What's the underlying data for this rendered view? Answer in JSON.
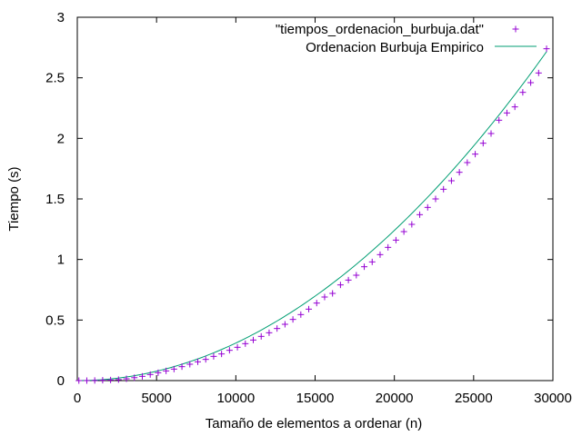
{
  "chart_data": {
    "type": "scatter",
    "title": "",
    "xlabel": "Tamaño de elementos a ordenar (n)",
    "ylabel": "Tiempo (s)",
    "xlim": [
      0,
      30000
    ],
    "ylim": [
      0,
      3
    ],
    "x_ticks": [
      0,
      5000,
      10000,
      15000,
      20000,
      25000,
      30000
    ],
    "x_tick_labels": [
      "0",
      "5000",
      "10000",
      "15000",
      "20000",
      "25000",
      "30000"
    ],
    "y_ticks": [
      0,
      0.5,
      1,
      1.5,
      2,
      2.5,
      3
    ],
    "y_tick_labels": [
      "0",
      "0.5",
      "1",
      "1.5",
      "2",
      "2.5",
      "3"
    ],
    "grid": false,
    "legend_position": "top-right",
    "series": [
      {
        "name": "\"tiempos_ordenacion_burbuja.dat\"",
        "style": "points",
        "color": "#9400d3",
        "x": [
          100,
          600,
          1100,
          1600,
          2100,
          2600,
          3100,
          3600,
          4100,
          4600,
          5100,
          5600,
          6100,
          6600,
          7100,
          7600,
          8100,
          8600,
          9100,
          9600,
          10100,
          10600,
          11100,
          11600,
          12100,
          12600,
          13100,
          13600,
          14100,
          14600,
          15100,
          15600,
          16100,
          16600,
          17100,
          17600,
          18100,
          18600,
          19100,
          19600,
          20100,
          20600,
          21100,
          21600,
          22100,
          22600,
          23100,
          23600,
          24100,
          24600,
          25100,
          25600,
          26100,
          26600,
          27100,
          27600,
          28100,
          28600,
          29100,
          29600
        ],
        "y": [
          0.0,
          0.0,
          0.001,
          0.003,
          0.005,
          0.008,
          0.015,
          0.024,
          0.035,
          0.05,
          0.065,
          0.08,
          0.095,
          0.115,
          0.135,
          0.155,
          0.175,
          0.2,
          0.22,
          0.25,
          0.275,
          0.305,
          0.335,
          0.365,
          0.395,
          0.43,
          0.465,
          0.505,
          0.545,
          0.59,
          0.64,
          0.69,
          0.72,
          0.79,
          0.83,
          0.87,
          0.94,
          0.98,
          1.04,
          1.1,
          1.16,
          1.23,
          1.29,
          1.37,
          1.43,
          1.5,
          1.58,
          1.65,
          1.72,
          1.8,
          1.87,
          1.96,
          2.04,
          2.15,
          2.21,
          2.26,
          2.38,
          2.46,
          2.54,
          2.74
        ]
      },
      {
        "name": "Ordenacion Burbuja Empirico",
        "style": "line",
        "color": "#009e73",
        "coefficients": {
          "a": 3.1e-09,
          "b": 0.0,
          "c": 0.0
        }
      }
    ]
  }
}
